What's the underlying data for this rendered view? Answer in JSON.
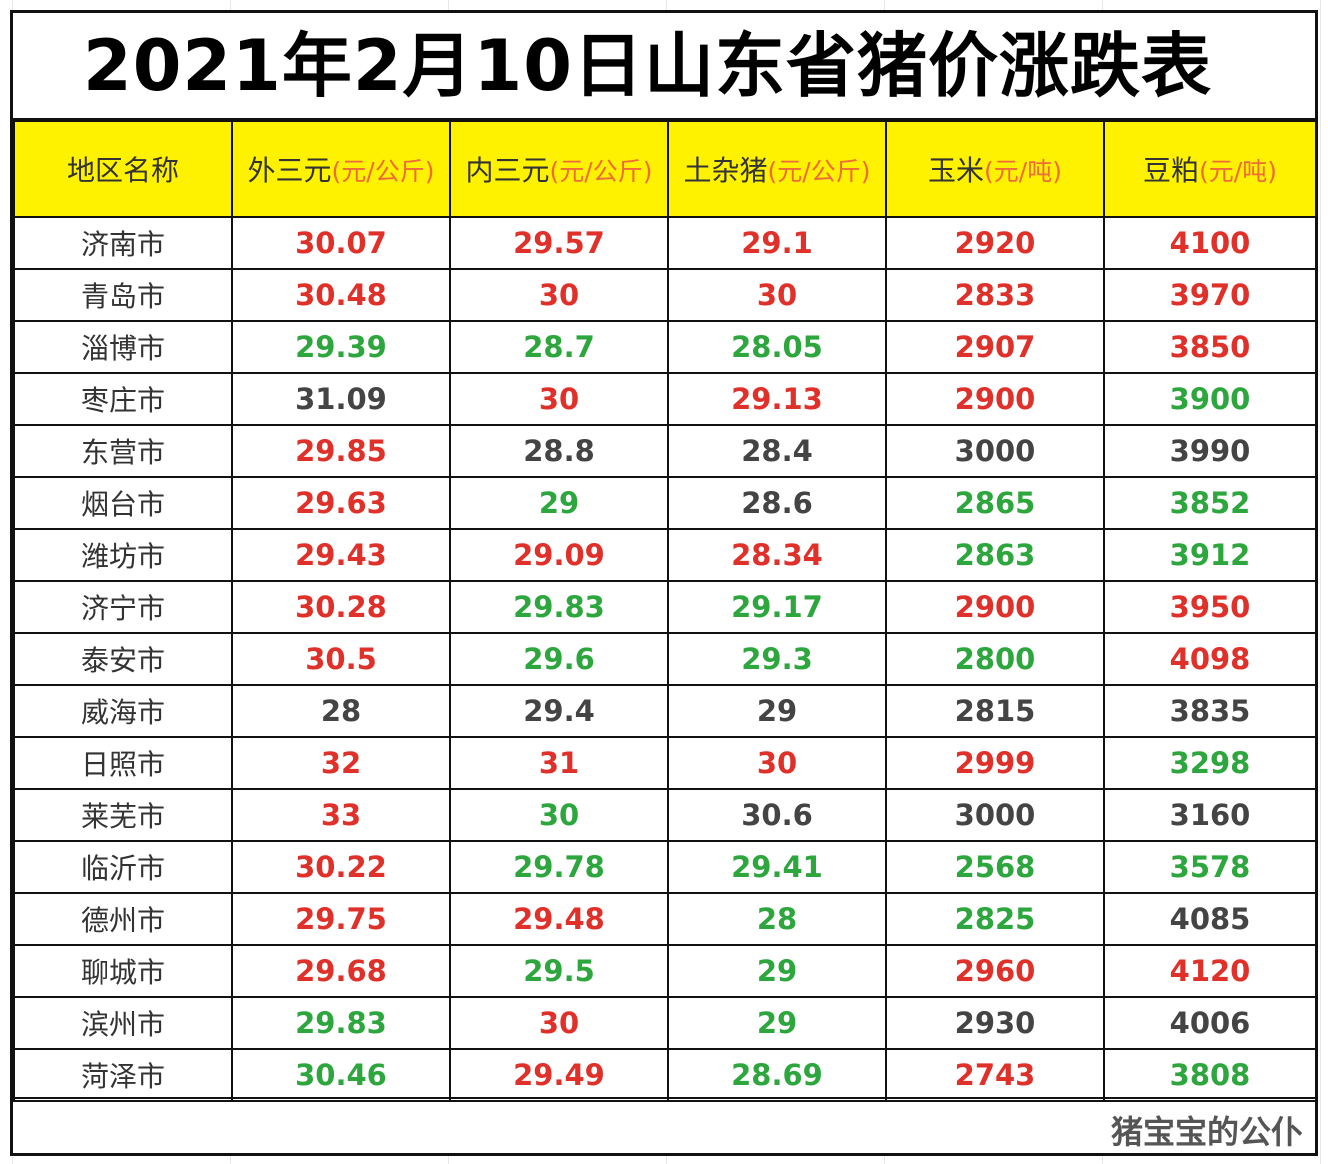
{
  "title": "2021年2月10日山东省猪价涨跌表",
  "watermark": "猪宝宝的公仆",
  "colors": {
    "up": "#e0302a",
    "down": "#2ea63e",
    "flat": "#444444",
    "header_bg": "#fff200",
    "unit": "#ef6b3a"
  },
  "columns": [
    {
      "name": "地区名称",
      "unit": ""
    },
    {
      "name": "外三元",
      "unit": "(元/公斤)"
    },
    {
      "name": "内三元",
      "unit": "(元/公斤)"
    },
    {
      "name": "土杂猪",
      "unit": "(元/公斤)"
    },
    {
      "name": "玉米",
      "unit": "(元/吨)"
    },
    {
      "name": "豆粕",
      "unit": "(元/吨)"
    }
  ],
  "rows": [
    {
      "city": "济南市",
      "cells": [
        {
          "v": "30.07",
          "s": "red"
        },
        {
          "v": "29.57",
          "s": "red"
        },
        {
          "v": "29.1",
          "s": "red"
        },
        {
          "v": "2920",
          "s": "red"
        },
        {
          "v": "4100",
          "s": "red"
        }
      ]
    },
    {
      "city": "青岛市",
      "cells": [
        {
          "v": "30.48",
          "s": "red"
        },
        {
          "v": "30",
          "s": "red"
        },
        {
          "v": "30",
          "s": "red"
        },
        {
          "v": "2833",
          "s": "red"
        },
        {
          "v": "3970",
          "s": "red"
        }
      ]
    },
    {
      "city": "淄博市",
      "cells": [
        {
          "v": "29.39",
          "s": "green"
        },
        {
          "v": "28.7",
          "s": "green"
        },
        {
          "v": "28.05",
          "s": "green"
        },
        {
          "v": "2907",
          "s": "red"
        },
        {
          "v": "3850",
          "s": "red"
        }
      ]
    },
    {
      "city": "枣庄市",
      "cells": [
        {
          "v": "31.09",
          "s": "dark"
        },
        {
          "v": "30",
          "s": "red"
        },
        {
          "v": "29.13",
          "s": "red"
        },
        {
          "v": "2900",
          "s": "red"
        },
        {
          "v": "3900",
          "s": "green"
        }
      ]
    },
    {
      "city": "东营市",
      "cells": [
        {
          "v": "29.85",
          "s": "red"
        },
        {
          "v": "28.8",
          "s": "dark"
        },
        {
          "v": "28.4",
          "s": "dark"
        },
        {
          "v": "3000",
          "s": "dark"
        },
        {
          "v": "3990",
          "s": "dark"
        }
      ]
    },
    {
      "city": "烟台市",
      "cells": [
        {
          "v": "29.63",
          "s": "red"
        },
        {
          "v": "29",
          "s": "green"
        },
        {
          "v": "28.6",
          "s": "dark"
        },
        {
          "v": "2865",
          "s": "green"
        },
        {
          "v": "3852",
          "s": "green"
        }
      ]
    },
    {
      "city": "潍坊市",
      "cells": [
        {
          "v": "29.43",
          "s": "red"
        },
        {
          "v": "29.09",
          "s": "red"
        },
        {
          "v": "28.34",
          "s": "red"
        },
        {
          "v": "2863",
          "s": "green"
        },
        {
          "v": "3912",
          "s": "green"
        }
      ]
    },
    {
      "city": "济宁市",
      "cells": [
        {
          "v": "30.28",
          "s": "red"
        },
        {
          "v": "29.83",
          "s": "green"
        },
        {
          "v": "29.17",
          "s": "green"
        },
        {
          "v": "2900",
          "s": "red"
        },
        {
          "v": "3950",
          "s": "red"
        }
      ]
    },
    {
      "city": "泰安市",
      "cells": [
        {
          "v": "30.5",
          "s": "red"
        },
        {
          "v": "29.6",
          "s": "green"
        },
        {
          "v": "29.3",
          "s": "green"
        },
        {
          "v": "2800",
          "s": "green"
        },
        {
          "v": "4098",
          "s": "red"
        }
      ]
    },
    {
      "city": "威海市",
      "cells": [
        {
          "v": "28",
          "s": "dark"
        },
        {
          "v": "29.4",
          "s": "dark"
        },
        {
          "v": "29",
          "s": "dark"
        },
        {
          "v": "2815",
          "s": "dark"
        },
        {
          "v": "3835",
          "s": "dark"
        }
      ]
    },
    {
      "city": "日照市",
      "cells": [
        {
          "v": "32",
          "s": "red"
        },
        {
          "v": "31",
          "s": "red"
        },
        {
          "v": "30",
          "s": "red"
        },
        {
          "v": "2999",
          "s": "red"
        },
        {
          "v": "3298",
          "s": "green"
        }
      ]
    },
    {
      "city": "莱芜市",
      "cells": [
        {
          "v": "33",
          "s": "red"
        },
        {
          "v": "30",
          "s": "green"
        },
        {
          "v": "30.6",
          "s": "dark"
        },
        {
          "v": "3000",
          "s": "dark"
        },
        {
          "v": "3160",
          "s": "dark"
        }
      ]
    },
    {
      "city": "临沂市",
      "cells": [
        {
          "v": "30.22",
          "s": "red"
        },
        {
          "v": "29.78",
          "s": "green"
        },
        {
          "v": "29.41",
          "s": "green"
        },
        {
          "v": "2568",
          "s": "green"
        },
        {
          "v": "3578",
          "s": "green"
        }
      ]
    },
    {
      "city": "德州市",
      "cells": [
        {
          "v": "29.75",
          "s": "red"
        },
        {
          "v": "29.48",
          "s": "red"
        },
        {
          "v": "28",
          "s": "green"
        },
        {
          "v": "2825",
          "s": "green"
        },
        {
          "v": "4085",
          "s": "dark"
        }
      ]
    },
    {
      "city": "聊城市",
      "cells": [
        {
          "v": "29.68",
          "s": "red"
        },
        {
          "v": "29.5",
          "s": "green"
        },
        {
          "v": "29",
          "s": "green"
        },
        {
          "v": "2960",
          "s": "red"
        },
        {
          "v": "4120",
          "s": "red"
        }
      ]
    },
    {
      "city": "滨州市",
      "cells": [
        {
          "v": "29.83",
          "s": "green"
        },
        {
          "v": "30",
          "s": "red"
        },
        {
          "v": "29",
          "s": "green"
        },
        {
          "v": "2930",
          "s": "dark"
        },
        {
          "v": "4006",
          "s": "dark"
        }
      ]
    },
    {
      "city": "菏泽市",
      "cells": [
        {
          "v": "30.46",
          "s": "green"
        },
        {
          "v": "29.49",
          "s": "red"
        },
        {
          "v": "28.69",
          "s": "green"
        },
        {
          "v": "2743",
          "s": "red"
        },
        {
          "v": "3808",
          "s": "green"
        }
      ]
    }
  ]
}
